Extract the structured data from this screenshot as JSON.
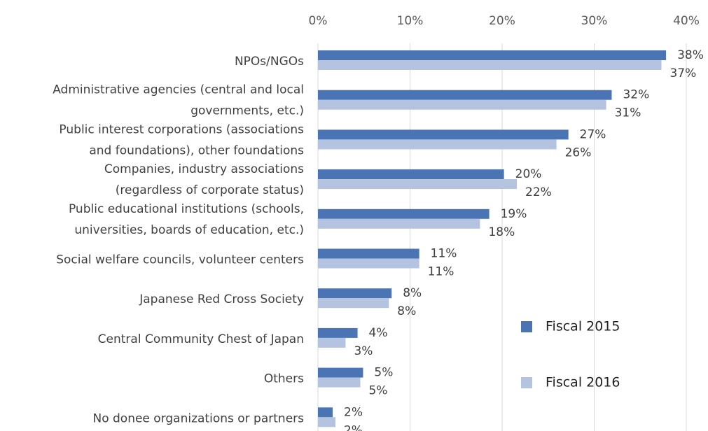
{
  "chart_data": {
    "type": "bar",
    "orientation": "horizontal",
    "categories": [
      [
        "NPOs/NGOs"
      ],
      [
        "Administrative agencies (central and local",
        "governments, etc.)"
      ],
      [
        "Public interest corporations (associations",
        "and foundations), other foundations"
      ],
      [
        "Companies, industry associations",
        "(regardless of corporate status)"
      ],
      [
        "Public educational institutions (schools,",
        "universities, boards of education, etc.)"
      ],
      [
        "Social welfare councils, volunteer centers"
      ],
      [
        "Japanese Red Cross Society"
      ],
      [
        "Central Community Chest of Japan"
      ],
      [
        "Others"
      ],
      [
        "No donee organizations or partners"
      ]
    ],
    "series": [
      {
        "name": "Fiscal 2015",
        "color": "#4a74b4",
        "values": [
          37.8,
          31.9,
          27.2,
          20.2,
          18.6,
          11.0,
          8.0,
          4.3,
          4.9,
          1.6
        ],
        "value_labels": [
          "38%",
          "32%",
          "27%",
          "20%",
          "19%",
          "11%",
          "8%",
          "4%",
          "5%",
          "2%"
        ]
      },
      {
        "name": "Fiscal 2016",
        "color": "#b4c3df",
        "values": [
          37.3,
          31.3,
          25.9,
          21.6,
          17.6,
          11.0,
          7.7,
          3.0,
          4.6,
          1.9
        ],
        "value_labels": [
          "37%",
          "31%",
          "26%",
          "22%",
          "18%",
          "11%",
          "8%",
          "3%",
          "5%",
          "2%"
        ]
      }
    ],
    "xlim": [
      0,
      40
    ],
    "xticks": [
      {
        "value": 0,
        "label": "0%"
      },
      {
        "value": 10,
        "label": "10%"
      },
      {
        "value": 20,
        "label": "20%"
      },
      {
        "value": 30,
        "label": "30%"
      },
      {
        "value": 40,
        "label": "40%"
      }
    ],
    "grid": true
  }
}
